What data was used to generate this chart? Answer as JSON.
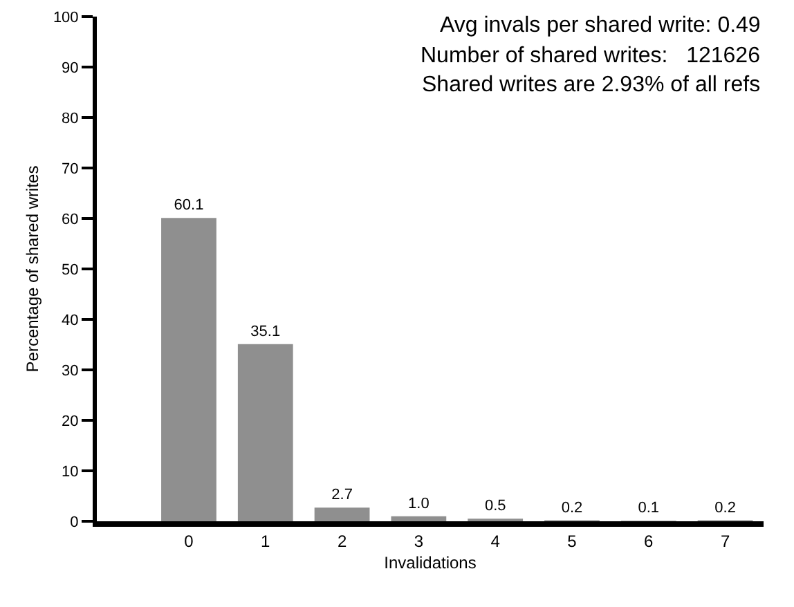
{
  "chart_data": {
    "type": "bar",
    "xlabel": "Invalidations",
    "ylabel": "Percentage of shared writes",
    "categories": [
      "0",
      "1",
      "2",
      "3",
      "4",
      "5",
      "6",
      "7"
    ],
    "values": [
      60.1,
      35.1,
      2.7,
      1.0,
      0.5,
      0.2,
      0.1,
      0.2
    ],
    "value_labels": [
      "60.1",
      "35.1",
      "2.7",
      "1.0",
      "0.5",
      "0.2",
      "0.1",
      "0.2"
    ],
    "color": "#8f8f8f",
    "ylim": [
      0,
      100
    ],
    "yticks": [
      0,
      10,
      20,
      30,
      40,
      50,
      60,
      70,
      80,
      90,
      100
    ],
    "grid": false,
    "annotations": [
      "Avg invals per shared write: 0.49",
      "Number of shared writes:   121626",
      "Shared writes are 2.93% of all refs"
    ]
  }
}
